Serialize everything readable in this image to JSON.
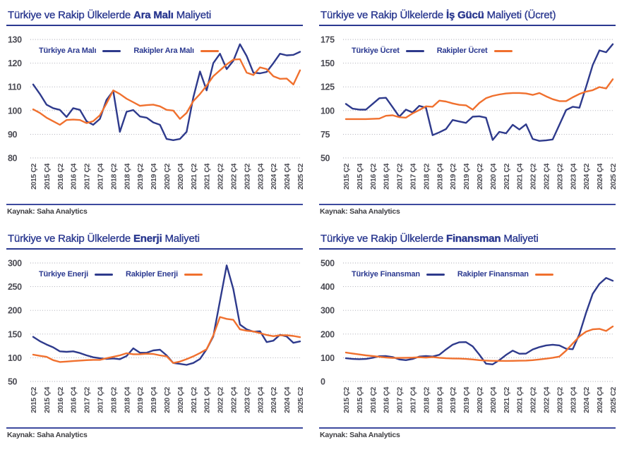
{
  "source": "Kaynak: Saha Analytics",
  "colors": {
    "navy_series": "#2E3A8C",
    "orange_series": "#F0702E",
    "title_navy": "#2B3990",
    "axis_text": "#4C4C54"
  },
  "panels": [
    {
      "title_prefix": "Türkiye ve Rakip Ülkelerde",
      "title_bold": "Ara Malı",
      "title_suffix": "Maliyeti"
    },
    {
      "title_prefix": "Türkiye ve Rakip Ülkelerde",
      "title_bold": "İş Gücü",
      "title_suffix": "Maliyeti (Ücret)"
    },
    {
      "title_prefix": "Türkiye ve Rakip Ülkelerde",
      "title_bold": "Enerji",
      "title_suffix": "Maliyeti"
    },
    {
      "title_prefix": "Türkiye ve Rakip Ülkelerde",
      "title_bold": "Finansman",
      "title_suffix": "Maliyeti"
    }
  ],
  "x_tick_labels": [
    "2015 Ç2",
    "2015 Ç4",
    "2016 Ç2",
    "2016 Ç4",
    "2017 Ç2",
    "2017 Ç4",
    "2018 Ç2",
    "2018 Ç4",
    "2019 Ç2",
    "2019 Ç4",
    "2020 Ç2",
    "2020 Ç4",
    "2021 Ç2",
    "2021 Ç4",
    "2022 Ç2",
    "2022 Ç4",
    "2023 Ç2",
    "2023 Ç4",
    "2024 Ç2",
    "2024 Ç4",
    "2025 Ç2"
  ],
  "chart_data": [
    {
      "type": "line",
      "title": "Türkiye ve Rakip Ülkelerde Ara Malı Maliyeti",
      "x_points": 41,
      "points_per_label": 2,
      "x_tick_labels": [
        "2015 Ç2",
        "2015 Ç4",
        "2016 Ç2",
        "2016 Ç4",
        "2017 Ç2",
        "2017 Ç4",
        "2018 Ç2",
        "2018 Ç4",
        "2019 Ç2",
        "2019 Ç4",
        "2020 Ç2",
        "2020 Ç4",
        "2021 Ç2",
        "2021 Ç4",
        "2022 Ç2",
        "2022 Ç4",
        "2023 Ç2",
        "2023 Ç4",
        "2024 Ç2",
        "2024 Ç4",
        "2025 Ç2"
      ],
      "ylim": [
        80,
        130
      ],
      "yticks": [
        80,
        90,
        100,
        110,
        120,
        130
      ],
      "grid": "horizontal-dotted",
      "legend_position": "inside-top-left",
      "series": [
        {
          "name": "Türkiye Ara Malı",
          "color": "#2E3A8C",
          "values": [
            111,
            107,
            102.5,
            101,
            100.3,
            97.3,
            101,
            100.3,
            95.5,
            94,
            96.5,
            104.5,
            108.3,
            91,
            99.5,
            100.2,
            97.5,
            97,
            95,
            94,
            88,
            87.5,
            88,
            91,
            105.5,
            116.5,
            108.5,
            120,
            124,
            117.5,
            121,
            128,
            123,
            116,
            115.7,
            116.3,
            120,
            124,
            123.3,
            123.5,
            124.8
          ]
        },
        {
          "name": "Rakipler Ara Malı",
          "color": "#F0702E",
          "values": [
            100.5,
            99,
            97,
            95.5,
            94,
            96,
            96.2,
            96,
            94.7,
            95.5,
            98,
            103,
            108.5,
            107,
            105,
            103.5,
            102,
            102.3,
            102.5,
            101.8,
            100.3,
            100,
            96.5,
            99,
            104,
            107,
            110.5,
            114.5,
            117,
            119.5,
            121.5,
            121.7,
            116,
            115,
            118.2,
            117.5,
            114.5,
            113.4,
            113.5,
            111,
            117
          ]
        }
      ]
    },
    {
      "type": "line",
      "title": "Türkiye ve Rakip Ülkelerde İş Gücü Maliyeti (Ücret)",
      "x_points": 41,
      "points_per_label": 2,
      "x_tick_labels": [
        "2015 Ç2",
        "2015 Ç4",
        "2016 Ç2",
        "2016 Ç4",
        "2017 Ç2",
        "2017 Ç4",
        "2018 Ç2",
        "2018 Ç4",
        "2019 Ç2",
        "2019 Ç4",
        "2020 Ç2",
        "2020 Ç4",
        "2021 Ç2",
        "2021 Ç4",
        "2022 Ç2",
        "2022 Ç4",
        "2023 Ç2",
        "2023 Ç4",
        "2024 Ç2",
        "2024 Ç4",
        "2025 Ç2"
      ],
      "ylim": [
        50,
        175
      ],
      "yticks": [
        50,
        75,
        100,
        125,
        150,
        175
      ],
      "grid": "horizontal-dotted",
      "legend_position": "inside-top-left",
      "series": [
        {
          "name": "Türkiye Ücret",
          "color": "#2E3A8C",
          "values": [
            107,
            102,
            101,
            101,
            107,
            113,
            113.5,
            103.5,
            93.5,
            101,
            98,
            105,
            103,
            74,
            77,
            80.5,
            90,
            88.5,
            87,
            93.5,
            94,
            92.5,
            69,
            77.5,
            76,
            85,
            80,
            85.5,
            70,
            68,
            68.5,
            69.5,
            85,
            100.5,
            104,
            103,
            125,
            148,
            163.5,
            161.5,
            170
          ]
        },
        {
          "name": "Rakipler Ücret",
          "color": "#F0702E",
          "values": [
            91,
            91,
            91,
            91,
            91.2,
            91.5,
            94.5,
            95,
            93,
            92.5,
            97,
            100.5,
            104.5,
            104,
            110.5,
            109.5,
            107.5,
            106,
            105.5,
            101,
            108,
            113,
            115.5,
            117,
            118,
            118.5,
            118.5,
            118,
            116.5,
            118.5,
            115,
            112,
            110,
            110,
            114,
            117.5,
            120,
            121.5,
            124.8,
            123.3,
            133
          ]
        }
      ]
    },
    {
      "type": "line",
      "title": "Türkiye ve Rakip Ülkelerde Enerji Maliyeti",
      "x_points": 41,
      "points_per_label": 2,
      "x_tick_labels": [
        "2015 Ç2",
        "2015 Ç4",
        "2016 Ç2",
        "2016 Ç4",
        "2017 Ç2",
        "2017 Ç4",
        "2018 Ç2",
        "2018 Ç4",
        "2019 Ç2",
        "2019 Ç4",
        "2020 Ç2",
        "2020 Ç4",
        "2021 Ç2",
        "2021 Ç4",
        "2022 Ç2",
        "2022 Ç4",
        "2023 Ç2",
        "2023 Ç4",
        "2024 Ç2",
        "2024 Ç4",
        "2025 Ç2"
      ],
      "ylim": [
        50,
        300
      ],
      "yticks": [
        50,
        100,
        150,
        200,
        250,
        300
      ],
      "grid": "horizontal-dotted",
      "legend_position": "inside-top-left",
      "series": [
        {
          "name": "Türkiye Enerji",
          "color": "#2E3A8C",
          "values": [
            144,
            135,
            128,
            122,
            113.5,
            112.5,
            113.5,
            110,
            105,
            101,
            99,
            97.5,
            98.5,
            97,
            103.5,
            120,
            110.5,
            110.5,
            115.5,
            117,
            105,
            89,
            87,
            85,
            89,
            97.5,
            118,
            145,
            220,
            295,
            245,
            170,
            160,
            155,
            156,
            133,
            136,
            148.5,
            145,
            131.5,
            134.5
          ]
        },
        {
          "name": "Rakipler Enerji",
          "color": "#F0702E",
          "values": [
            106.5,
            104,
            102,
            95,
            91,
            92,
            93,
            94,
            95,
            95.5,
            95.5,
            99,
            102,
            105,
            109.5,
            107.5,
            107.5,
            108.5,
            108,
            105,
            103,
            89,
            92,
            97,
            103,
            110,
            118,
            147,
            186,
            182,
            180,
            160,
            157,
            155.5,
            152,
            148,
            145.5,
            147.5,
            147.5,
            146,
            143.5
          ]
        }
      ]
    },
    {
      "type": "line",
      "title": "Türkiye ve Rakip Ülkelerde Finansman Maliyeti",
      "x_points": 41,
      "points_per_label": 2,
      "x_tick_labels": [
        "2015 Ç2",
        "2015 Ç4",
        "2016 Ç2",
        "2016 Ç4",
        "2017 Ç2",
        "2017 Ç4",
        "2018 Ç2",
        "2018 Ç4",
        "2019 Ç2",
        "2019 Ç4",
        "2020 Ç2",
        "2020 Ç4",
        "2021 Ç2",
        "2021 Ç4",
        "2022 Ç2",
        "2022 Ç4",
        "2023 Ç2",
        "2023 Ç4",
        "2024 Ç2",
        "2024 Ç4",
        "2025 Ç2"
      ],
      "ylim": [
        0,
        500
      ],
      "yticks": [
        0,
        100,
        200,
        300,
        400,
        500
      ],
      "grid": "horizontal-dotted",
      "legend_position": "inside-top-left",
      "series": [
        {
          "name": "Türkiye Finansman",
          "color": "#2E3A8C",
          "values": [
            98,
            95,
            94,
            95,
            100,
            106.5,
            107,
            103,
            93,
            90,
            95,
            105,
            107,
            105,
            112.5,
            135,
            155,
            165.5,
            166,
            148,
            113,
            75,
            72,
            90,
            112,
            130,
            117,
            117.5,
            135,
            145,
            152,
            155,
            152,
            138,
            136,
            200,
            290,
            370,
            412,
            437,
            425
          ]
        },
        {
          "name": "Rakipler Finansman",
          "color": "#F0702E",
          "values": [
            122,
            118,
            114,
            110,
            107,
            104,
            101,
            99,
            99.5,
            100,
            100.5,
            102,
            100.5,
            103,
            100,
            98,
            97,
            96.5,
            95,
            93,
            90,
            88,
            87,
            87,
            86.5,
            87,
            87.5,
            88,
            90,
            93,
            96,
            100,
            105,
            130,
            160,
            190,
            210,
            220,
            222,
            213,
            232
          ]
        }
      ]
    }
  ]
}
